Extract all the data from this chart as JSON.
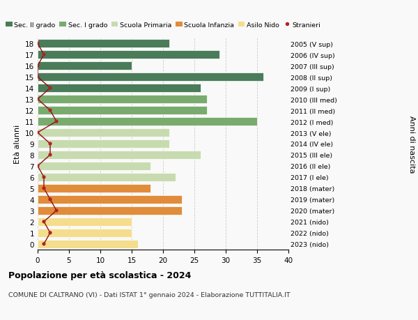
{
  "ages": [
    18,
    17,
    16,
    15,
    14,
    13,
    12,
    11,
    10,
    9,
    8,
    7,
    6,
    5,
    4,
    3,
    2,
    1,
    0
  ],
  "years": [
    "2005 (V sup)",
    "2006 (IV sup)",
    "2007 (III sup)",
    "2008 (II sup)",
    "2009 (I sup)",
    "2010 (III med)",
    "2011 (II med)",
    "2012 (I med)",
    "2013 (V ele)",
    "2014 (IV ele)",
    "2015 (III ele)",
    "2016 (II ele)",
    "2017 (I ele)",
    "2018 (mater)",
    "2019 (mater)",
    "2020 (mater)",
    "2021 (nido)",
    "2022 (nido)",
    "2023 (nido)"
  ],
  "bar_values": [
    21,
    29,
    15,
    36,
    26,
    27,
    27,
    35,
    21,
    21,
    26,
    18,
    22,
    18,
    23,
    23,
    15,
    15,
    16
  ],
  "stranieri": [
    0,
    1,
    0,
    0,
    2,
    0,
    2,
    3,
    0,
    2,
    2,
    0,
    1,
    1,
    2,
    3,
    1,
    2,
    1
  ],
  "bar_colors": [
    "#4a7c59",
    "#4a7c59",
    "#4a7c59",
    "#4a7c59",
    "#4a7c59",
    "#7aab6e",
    "#7aab6e",
    "#7aab6e",
    "#c8dbb0",
    "#c8dbb0",
    "#c8dbb0",
    "#c8dbb0",
    "#c8dbb0",
    "#e08c3a",
    "#e08c3a",
    "#e08c3a",
    "#f5dd8e",
    "#f5dd8e",
    "#f5dd8e"
  ],
  "legend_labels": [
    "Sec. II grado",
    "Sec. I grado",
    "Scuola Primaria",
    "Scuola Infanzia",
    "Asilo Nido",
    "Stranieri"
  ],
  "legend_colors": [
    "#4a7c59",
    "#7aab6e",
    "#c8dbb0",
    "#e08c3a",
    "#f5dd8e",
    "#b22222"
  ],
  "title_bold": "Popolazione per età scolastica - 2024",
  "subtitle": "COMUNE DI CALTRANO (VI) - Dati ISTAT 1° gennaio 2024 - Elaborazione TUTTITALIA.IT",
  "xlabel_left": "Età alunni",
  "ylabel_right": "Anni di nascita",
  "xlim": [
    0,
    40
  ],
  "bg_color": "#f9f9f9",
  "stranieri_color": "#b22222",
  "stranieri_line_color": "#8b1010"
}
